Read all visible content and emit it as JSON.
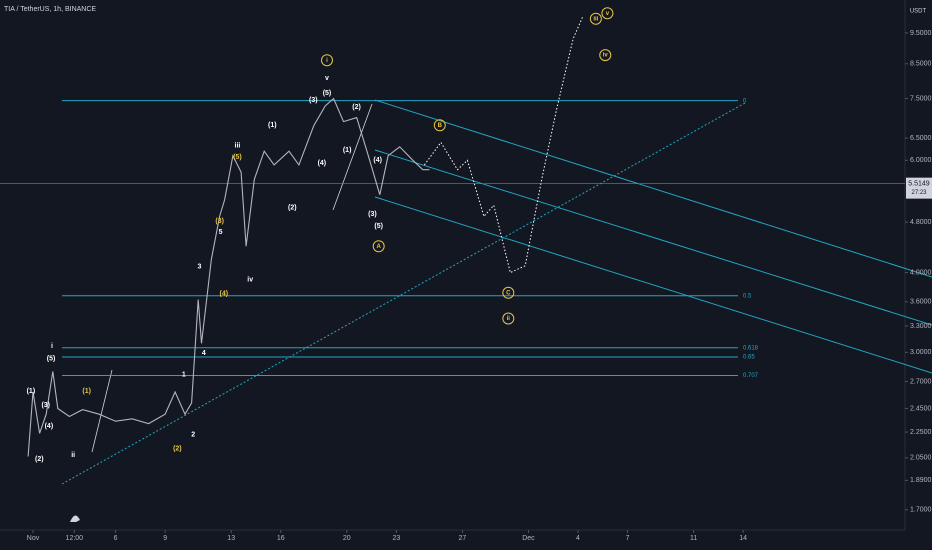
{
  "chart_data": {
    "type": "line",
    "title": "TIA / TetherUS, 1h, BINANCE",
    "y_unit": "USDT",
    "log_scale": true,
    "xlim": [
      -2,
      52.8
    ],
    "ylim": [
      1.58,
      10.7
    ],
    "xticks": [
      {
        "value": 0,
        "label": "Nov"
      },
      {
        "value": 2.5,
        "label": "12:00"
      },
      {
        "value": 5,
        "label": "6"
      },
      {
        "value": 8,
        "label": "9"
      },
      {
        "value": 12,
        "label": "13"
      },
      {
        "value": 15,
        "label": "16"
      },
      {
        "value": 19,
        "label": "20"
      },
      {
        "value": 22,
        "label": "23"
      },
      {
        "value": 26,
        "label": "27"
      },
      {
        "value": 30,
        "label": "Dec"
      },
      {
        "value": 33,
        "label": "4"
      },
      {
        "value": 36,
        "label": "7"
      },
      {
        "value": 40,
        "label": "11"
      },
      {
        "value": 43,
        "label": "14"
      }
    ],
    "yticks": [
      {
        "value": 9.5,
        "label": "9.5000"
      },
      {
        "value": 8.5,
        "label": "8.5000"
      },
      {
        "value": 7.5,
        "label": "7.5000"
      },
      {
        "value": 6.5,
        "label": "6.5000"
      },
      {
        "value": 6,
        "label": "6.0000"
      },
      {
        "value": 4.8,
        "label": "4.8000"
      },
      {
        "value": 4,
        "label": "4.0000"
      },
      {
        "value": 3.6,
        "label": "3.6000"
      },
      {
        "value": 3.3,
        "label": "3.3000"
      },
      {
        "value": 3,
        "label": "3.0000"
      },
      {
        "value": 2.7,
        "label": "2.7000"
      },
      {
        "value": 2.45,
        "label": "2.4500"
      },
      {
        "value": 2.25,
        "label": "2.2500"
      },
      {
        "value": 2.05,
        "label": "2.0500"
      },
      {
        "value": 1.89,
        "label": "1.8900"
      },
      {
        "value": 1.7,
        "label": "1.7000"
      }
    ],
    "series": [
      {
        "color": "#b2b5be",
        "style": "solid",
        "x": [
          -0.3,
          0,
          0.4,
          0.8,
          1.2,
          1.5,
          2.2,
          3,
          4,
          5,
          6,
          7,
          8,
          8.6,
          9.2,
          9.6,
          10,
          10.2,
          10.8,
          11.3,
          11.6,
          12.1,
          12.6,
          12.9,
          13.4,
          14,
          14.6,
          15.5,
          16.1,
          17,
          17.7,
          18.2,
          18.8,
          19.6,
          20.3,
          21,
          21.5,
          22.2,
          23,
          23.6,
          24
        ],
        "values": [
          2.06,
          2.6,
          2.24,
          2.4,
          2.8,
          2.45,
          2.38,
          2.44,
          2.4,
          2.34,
          2.36,
          2.32,
          2.4,
          2.6,
          2.4,
          2.5,
          3.63,
          3.1,
          4.2,
          4.9,
          5.2,
          6.1,
          5.75,
          4.4,
          5.6,
          6.2,
          5.9,
          6.2,
          5.9,
          6.8,
          7.3,
          7.5,
          6.9,
          7.0,
          6.1,
          5.3,
          6.1,
          6.3,
          6.0,
          5.8,
          5.8
        ]
      },
      {
        "color": "#ffffff",
        "style": "dotted",
        "x": [
          23.7,
          24.7,
          25.7,
          26.3,
          27.3,
          27.9,
          28.9,
          29.8,
          30.8,
          31.7,
          32.7,
          33.3
        ],
        "values": [
          5.9,
          6.4,
          5.8,
          6.0,
          4.9,
          5.1,
          4.0,
          4.1,
          5.6,
          7.2,
          9.3,
          10.1
        ]
      }
    ],
    "levels": [
      {
        "value": 7.44,
        "label": "0"
      },
      {
        "value": 3.68,
        "label": "0.5"
      },
      {
        "value": 3.05,
        "label": "0.618"
      },
      {
        "value": 2.95,
        "label": "0.65"
      },
      {
        "value": 2.76,
        "label": "0.707"
      }
    ],
    "level_color": "#22a7c2",
    "last_price": {
      "value": 5.5149,
      "label": "5.5149"
    },
    "countdown": "27:23",
    "annotations": [
      {
        "text": "(1)",
        "x": -0.13,
        "y": 2.61,
        "color": "#ffffff"
      },
      {
        "text": "(2)",
        "x": 0.38,
        "y": 2.04,
        "color": "#ffffff"
      },
      {
        "text": "(3)",
        "x": 0.77,
        "y": 2.48,
        "color": "#ffffff"
      },
      {
        "text": "(4)",
        "x": 0.96,
        "y": 2.3,
        "color": "#ffffff"
      },
      {
        "text": "(5)",
        "x": 1.09,
        "y": 2.93,
        "color": "#ffffff"
      },
      {
        "text": "i",
        "x": 1.15,
        "y": 3.07,
        "color": "#ffffff"
      },
      {
        "text": "ii",
        "x": 2.43,
        "y": 2.07,
        "color": "#ffffff"
      },
      {
        "text": "(1)",
        "x": 3.25,
        "y": 2.61,
        "color": "#e8c547"
      },
      {
        "text": "(2)",
        "x": 8.74,
        "y": 2.12,
        "color": "#e8c547"
      },
      {
        "text": "1",
        "x": 9.13,
        "y": 2.77,
        "color": "#ffffff"
      },
      {
        "text": "2",
        "x": 9.7,
        "y": 2.23,
        "color": "#ffffff"
      },
      {
        "text": "3",
        "x": 10.08,
        "y": 4.09,
        "color": "#ffffff"
      },
      {
        "text": "4",
        "x": 10.34,
        "y": 2.99,
        "color": "#ffffff"
      },
      {
        "text": "(4)",
        "x": 11.55,
        "y": 3.71,
        "color": "#e8c547"
      },
      {
        "text": "5",
        "x": 11.36,
        "y": 4.63,
        "color": "#ffffff"
      },
      {
        "text": "(3)",
        "x": 11.3,
        "y": 4.82,
        "color": "#e8c547"
      },
      {
        "text": "(5)",
        "x": 12.38,
        "y": 6.07,
        "color": "#e8c547"
      },
      {
        "text": "iii",
        "x": 12.38,
        "y": 6.33,
        "color": "#ffffff"
      },
      {
        "text": "iv",
        "x": 13.15,
        "y": 3.9,
        "color": "#ffffff"
      },
      {
        "text": "(1)",
        "x": 14.49,
        "y": 6.81,
        "color": "#ffffff"
      },
      {
        "text": "(2)",
        "x": 15.7,
        "y": 5.06,
        "color": "#ffffff"
      },
      {
        "text": "(3)",
        "x": 16.97,
        "y": 7.46,
        "color": "#ffffff"
      },
      {
        "text": "(4)",
        "x": 17.49,
        "y": 5.94,
        "color": "#ffffff"
      },
      {
        "text": "(5)",
        "x": 17.8,
        "y": 7.64,
        "color": "#ffffff"
      },
      {
        "text": "v",
        "x": 17.8,
        "y": 8.07,
        "color": "#ffffff"
      },
      {
        "text": "i",
        "x": 17.8,
        "y": 8.61,
        "color": "#e8c547",
        "circled": true
      },
      {
        "text": "(2)",
        "x": 19.59,
        "y": 7.27,
        "color": "#ffffff"
      },
      {
        "text": "(1)",
        "x": 19.02,
        "y": 6.22,
        "color": "#ffffff"
      },
      {
        "text": "(4)",
        "x": 20.87,
        "y": 6.0,
        "color": "#ffffff"
      },
      {
        "text": "(3)",
        "x": 20.55,
        "y": 4.94,
        "color": "#ffffff"
      },
      {
        "text": "(5)",
        "x": 20.93,
        "y": 4.73,
        "color": "#ffffff"
      },
      {
        "text": "A",
        "x": 20.93,
        "y": 4.4,
        "color": "#e8c547",
        "circled": true
      },
      {
        "text": "B",
        "x": 24.63,
        "y": 6.81,
        "color": "#e8c547",
        "circled": true
      },
      {
        "text": "C",
        "x": 28.78,
        "y": 3.72,
        "color": "#e8c547",
        "circled": true
      },
      {
        "text": "ii",
        "x": 28.78,
        "y": 3.39,
        "color": "#e8c547",
        "circled": true
      },
      {
        "text": "iii",
        "x": 34.08,
        "y": 10.0,
        "color": "#e8c547",
        "circled": true
      },
      {
        "text": "v",
        "x": 34.78,
        "y": 10.2,
        "color": "#e8c547",
        "circled": true
      },
      {
        "text": "iv",
        "x": 34.65,
        "y": 8.77,
        "color": "#e8c547",
        "circled": true
      }
    ]
  }
}
